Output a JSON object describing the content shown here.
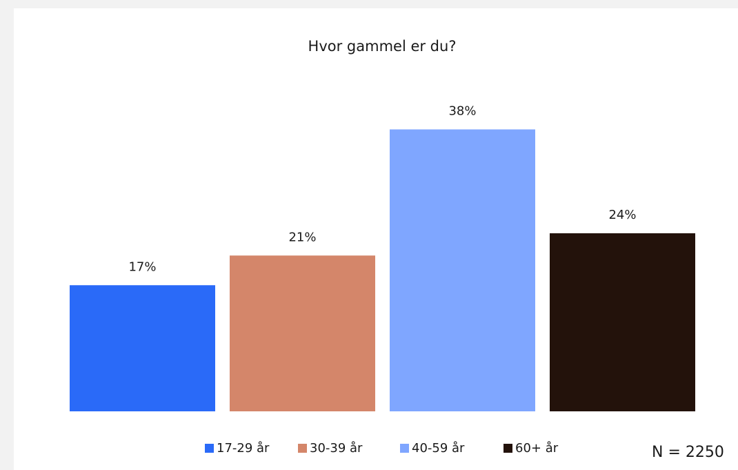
{
  "chart_data": {
    "type": "bar",
    "title": "Hvor gammel er du?",
    "categories": [
      "17-29 år",
      "30-39 år",
      "40-59 år",
      "60+ år"
    ],
    "values": [
      17,
      21,
      38,
      24
    ],
    "value_labels": [
      "17%",
      "21%",
      "38%",
      "24%"
    ],
    "colors": [
      "#2a6af8",
      "#d4866a",
      "#7fa6ff",
      "#23120b"
    ],
    "annotation": "N = 2250"
  }
}
